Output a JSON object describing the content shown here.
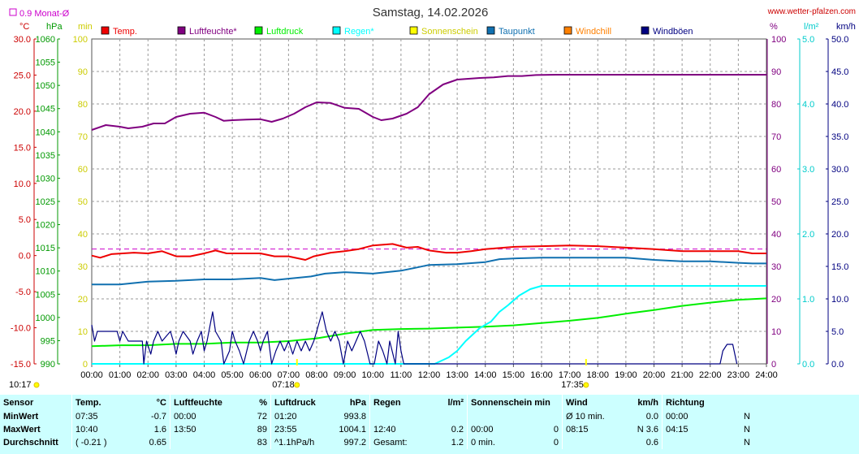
{
  "title": "Samstag, 14.02.2026",
  "site": "www.wetter-pfalzen.com",
  "month_avg_label": "0.9 Monat-Ø",
  "colors": {
    "temp": "#ee0000",
    "humidity": "#800080",
    "pressure": "#00ee00",
    "rain": "#00ffff",
    "sun": "#ffff00",
    "dewpoint": "#1070b0",
    "windchill": "#ff8000",
    "gusts": "#000080",
    "month_avg": "#cc00cc"
  },
  "legend": [
    {
      "key": "temp",
      "label": "Temp."
    },
    {
      "key": "humidity",
      "label": "Luftfeuchte*"
    },
    {
      "key": "pressure",
      "label": "Luftdruck"
    },
    {
      "key": "rain",
      "label": "Regen*"
    },
    {
      "key": "sun",
      "label": "Sonnenschein"
    },
    {
      "key": "dewpoint",
      "label": "Taupunkt"
    },
    {
      "key": "windchill",
      "label": "Windchill"
    },
    {
      "key": "gusts",
      "label": "Windböen"
    }
  ],
  "sunrise": "07:18",
  "sunset": "17:35",
  "current_time": "10:17",
  "chart_data": {
    "type": "line",
    "x_ticks": [
      "00:00",
      "01:00",
      "02:00",
      "03:00",
      "04:00",
      "05:00",
      "06:00",
      "07:00",
      "08:00",
      "09:00",
      "10:00",
      "11:00",
      "12:00",
      "13:00",
      "14:00",
      "15:00",
      "16:00",
      "17:00",
      "18:00",
      "19:00",
      "20:00",
      "21:00",
      "22:00",
      "23:00",
      "24:00"
    ],
    "axes": {
      "temp": {
        "unit": "°C",
        "ticks": [
          "30.0",
          "25.0",
          "20.0",
          "15.0",
          "10.0",
          "5.0",
          "0.0",
          "-5.0",
          "-10.0",
          "-15.0"
        ],
        "range": [
          -15,
          30
        ]
      },
      "pressure": {
        "unit": "hPa",
        "ticks": [
          "1060",
          "1055",
          "1050",
          "1045",
          "1040",
          "1035",
          "1030",
          "1025",
          "1020",
          "1015",
          "1010",
          "1005",
          "1000",
          "995",
          "990"
        ],
        "range": [
          990,
          1060
        ]
      },
      "minutes": {
        "unit": "min",
        "ticks": [
          "100",
          "90",
          "80",
          "70",
          "60",
          "50",
          "40",
          "30",
          "20",
          "10",
          "0"
        ],
        "range": [
          0,
          100
        ]
      },
      "percent": {
        "unit": "%",
        "ticks": [
          "100",
          "90",
          "80",
          "70",
          "60",
          "50",
          "40",
          "30",
          "20",
          "10",
          "0"
        ],
        "range": [
          0,
          100
        ]
      },
      "rain": {
        "unit": "l/m²",
        "ticks": [
          "5.0",
          "4.0",
          "3.0",
          "2.0",
          "1.0",
          "0.0"
        ],
        "range": [
          0,
          5
        ]
      },
      "wind": {
        "unit": "km/h",
        "ticks": [
          "50.0",
          "45.0",
          "40.0",
          "35.0",
          "30.0",
          "25.0",
          "20.0",
          "15.0",
          "10.0",
          "5.0",
          "0.0"
        ],
        "range": [
          0,
          50
        ]
      }
    },
    "month_avg_temp": 0.9,
    "series": [
      {
        "name": "Temp.",
        "axis": "temp",
        "points": [
          [
            0,
            0.0
          ],
          [
            0.3,
            -0.3
          ],
          [
            0.7,
            0.2
          ],
          [
            1.5,
            0.4
          ],
          [
            2.0,
            0.3
          ],
          [
            2.5,
            0.6
          ],
          [
            3.0,
            -0.1
          ],
          [
            3.5,
            -0.1
          ],
          [
            4.0,
            0.3
          ],
          [
            4.4,
            0.7
          ],
          [
            4.8,
            0.3
          ],
          [
            6.0,
            0.3
          ],
          [
            6.5,
            -0.1
          ],
          [
            7.0,
            -0.1
          ],
          [
            7.6,
            -0.6
          ],
          [
            7.9,
            -0.1
          ],
          [
            8.5,
            0.4
          ],
          [
            9.0,
            0.6
          ],
          [
            9.5,
            0.9
          ],
          [
            10.0,
            1.4
          ],
          [
            10.7,
            1.6
          ],
          [
            11.2,
            1.1
          ],
          [
            11.6,
            1.2
          ],
          [
            12.0,
            0.7
          ],
          [
            12.6,
            0.4
          ],
          [
            13.0,
            0.4
          ],
          [
            13.5,
            0.6
          ],
          [
            14.0,
            0.9
          ],
          [
            15.0,
            1.2
          ],
          [
            16.0,
            1.3
          ],
          [
            17.0,
            1.4
          ],
          [
            18.0,
            1.3
          ],
          [
            19.0,
            1.1
          ],
          [
            20.0,
            0.9
          ],
          [
            21.0,
            0.6
          ],
          [
            22.0,
            0.6
          ],
          [
            23.0,
            0.6
          ],
          [
            23.5,
            0.3
          ],
          [
            24,
            0.3
          ]
        ]
      },
      {
        "name": "Luftfeuchte*",
        "axis": "percent",
        "points": [
          [
            0,
            72
          ],
          [
            0.5,
            73.5
          ],
          [
            1,
            73
          ],
          [
            1.3,
            72.5
          ],
          [
            1.8,
            73
          ],
          [
            2.2,
            74
          ],
          [
            2.6,
            74
          ],
          [
            3,
            76
          ],
          [
            3.5,
            77
          ],
          [
            4.0,
            77.3
          ],
          [
            4.4,
            76
          ],
          [
            4.7,
            74.8
          ],
          [
            5,
            75
          ],
          [
            5.5,
            75.2
          ],
          [
            6,
            75.3
          ],
          [
            6.4,
            74.5
          ],
          [
            6.8,
            75.5
          ],
          [
            7.2,
            77
          ],
          [
            7.6,
            79
          ],
          [
            8.0,
            80.5
          ],
          [
            8.5,
            80.3
          ],
          [
            9.0,
            78.8
          ],
          [
            9.5,
            78.5
          ],
          [
            10.0,
            76
          ],
          [
            10.3,
            75
          ],
          [
            10.7,
            75.5
          ],
          [
            11.2,
            77
          ],
          [
            11.6,
            79
          ],
          [
            12.0,
            83
          ],
          [
            12.5,
            86
          ],
          [
            13.0,
            87.5
          ],
          [
            13.8,
            88
          ],
          [
            14.3,
            88.2
          ],
          [
            14.8,
            88.6
          ],
          [
            15.3,
            88.6
          ],
          [
            15.8,
            88.9
          ],
          [
            16.5,
            89
          ],
          [
            24,
            89
          ]
        ]
      },
      {
        "name": "Luftdruck",
        "axis": "pressure",
        "points": [
          [
            0,
            993.8
          ],
          [
            1,
            994.0
          ],
          [
            2,
            994.0
          ],
          [
            3,
            994.3
          ],
          [
            4,
            994.3
          ],
          [
            5,
            994.6
          ],
          [
            6,
            994.6
          ],
          [
            7,
            994.9
          ],
          [
            8,
            995.5
          ],
          [
            9,
            996.5
          ],
          [
            10,
            997.3
          ],
          [
            11,
            997.5
          ],
          [
            12,
            997.6
          ],
          [
            13,
            997.8
          ],
          [
            14,
            998.0
          ],
          [
            15,
            998.3
          ],
          [
            16,
            998.8
          ],
          [
            17,
            999.3
          ],
          [
            18,
            999.9
          ],
          [
            19,
            1000.8
          ],
          [
            20,
            1001.6
          ],
          [
            21,
            1002.5
          ],
          [
            22,
            1003.2
          ],
          [
            23,
            1003.8
          ],
          [
            24,
            1004.1
          ]
        ]
      },
      {
        "name": "Regen*",
        "axis": "rain",
        "points": [
          [
            0,
            0
          ],
          [
            12.2,
            0
          ],
          [
            12.7,
            0.1
          ],
          [
            13.0,
            0.2
          ],
          [
            13.3,
            0.35
          ],
          [
            13.8,
            0.55
          ],
          [
            14.2,
            0.65
          ],
          [
            14.5,
            0.8
          ],
          [
            14.8,
            0.9
          ],
          [
            15.2,
            1.05
          ],
          [
            15.6,
            1.15
          ],
          [
            16.0,
            1.2
          ],
          [
            24,
            1.2
          ]
        ]
      },
      {
        "name": "Taupunkt",
        "axis": "temp",
        "points": [
          [
            0,
            -4.0
          ],
          [
            1,
            -4.0
          ],
          [
            2,
            -3.6
          ],
          [
            3,
            -3.5
          ],
          [
            4,
            -3.3
          ],
          [
            5,
            -3.3
          ],
          [
            6,
            -3.1
          ],
          [
            6.5,
            -3.4
          ],
          [
            7,
            -3.2
          ],
          [
            7.8,
            -2.9
          ],
          [
            8.3,
            -2.5
          ],
          [
            9,
            -2.3
          ],
          [
            10,
            -2.5
          ],
          [
            11,
            -2.1
          ],
          [
            11.5,
            -1.7
          ],
          [
            12,
            -1.3
          ],
          [
            13,
            -1.2
          ],
          [
            14,
            -0.9
          ],
          [
            14.5,
            -0.5
          ],
          [
            15,
            -0.4
          ],
          [
            16,
            -0.3
          ],
          [
            17,
            -0.3
          ],
          [
            18,
            -0.3
          ],
          [
            19,
            -0.3
          ],
          [
            20,
            -0.6
          ],
          [
            21,
            -0.8
          ],
          [
            22,
            -0.8
          ],
          [
            23,
            -1.0
          ],
          [
            23.5,
            -1.1
          ],
          [
            24,
            -1.1
          ]
        ]
      },
      {
        "name": "Windböen",
        "axis": "wind",
        "points": [
          [
            0,
            6
          ],
          [
            0.1,
            3.5
          ],
          [
            0.2,
            5
          ],
          [
            0.35,
            5
          ],
          [
            0.6,
            5
          ],
          [
            0.8,
            5
          ],
          [
            0.9,
            5
          ],
          [
            1.0,
            3.5
          ],
          [
            1.1,
            5
          ],
          [
            1.3,
            3.5
          ],
          [
            1.6,
            3.5
          ],
          [
            1.8,
            3.5
          ],
          [
            1.85,
            0
          ],
          [
            1.95,
            3.5
          ],
          [
            2.1,
            1.5
          ],
          [
            2.2,
            3.5
          ],
          [
            2.35,
            5
          ],
          [
            2.5,
            3.5
          ],
          [
            2.8,
            5
          ],
          [
            2.9,
            3.5
          ],
          [
            3.0,
            1.5
          ],
          [
            3.1,
            3.5
          ],
          [
            3.25,
            5
          ],
          [
            3.5,
            3.5
          ],
          [
            3.6,
            1.5
          ],
          [
            3.75,
            3.5
          ],
          [
            3.9,
            5
          ],
          [
            4.0,
            2
          ],
          [
            4.1,
            3.5
          ],
          [
            4.3,
            8
          ],
          [
            4.4,
            5
          ],
          [
            4.6,
            3.5
          ],
          [
            4.7,
            0
          ],
          [
            4.9,
            2
          ],
          [
            5.0,
            5
          ],
          [
            5.1,
            3.5
          ],
          [
            5.25,
            2
          ],
          [
            5.4,
            0
          ],
          [
            5.6,
            3.5
          ],
          [
            5.75,
            5
          ],
          [
            5.9,
            3.5
          ],
          [
            6.0,
            2
          ],
          [
            6.1,
            3.5
          ],
          [
            6.25,
            5
          ],
          [
            6.4,
            0
          ],
          [
            6.55,
            2
          ],
          [
            6.7,
            3.5
          ],
          [
            6.85,
            2
          ],
          [
            7.0,
            3.5
          ],
          [
            7.15,
            1.5
          ],
          [
            7.3,
            3.5
          ],
          [
            7.45,
            2
          ],
          [
            7.6,
            3.5
          ],
          [
            7.75,
            2
          ],
          [
            7.9,
            3.5
          ],
          [
            8.0,
            5
          ],
          [
            8.2,
            8
          ],
          [
            8.35,
            5
          ],
          [
            8.5,
            3.5
          ],
          [
            8.65,
            5
          ],
          [
            8.8,
            3.5
          ],
          [
            8.95,
            0
          ],
          [
            9.1,
            3.5
          ],
          [
            9.25,
            2
          ],
          [
            9.4,
            3.5
          ],
          [
            9.55,
            5
          ],
          [
            9.7,
            3.5
          ],
          [
            9.9,
            0
          ],
          [
            10.05,
            0
          ],
          [
            10.2,
            3.5
          ],
          [
            10.35,
            2
          ],
          [
            10.5,
            0
          ],
          [
            10.6,
            3.5
          ],
          [
            10.8,
            0
          ],
          [
            10.9,
            5
          ],
          [
            11.0,
            2
          ],
          [
            11.1,
            0
          ],
          [
            22.35,
            0
          ],
          [
            22.45,
            2
          ],
          [
            22.6,
            3
          ],
          [
            22.8,
            3
          ],
          [
            22.95,
            0
          ]
        ]
      }
    ]
  },
  "stats": {
    "headers": {
      "sensor": "Sensor",
      "temp": "Temp.",
      "temp_unit": "°C",
      "humidity": "Luftfeuchte",
      "humidity_unit": "%",
      "pressure": "Luftdruck",
      "pressure_unit": "hPa",
      "rain": "Regen",
      "rain_unit": "l/m²",
      "sun": "Sonnenschein min",
      "wind": "Wind",
      "wind_unit": "km/h",
      "direction": "Richtung"
    },
    "rows": [
      {
        "label": "MinWert",
        "temp_t": "07:35",
        "temp_v": "-0.7",
        "hum_t": "00:00",
        "hum_v": "72",
        "pres_t": "01:20",
        "pres_v": "993.8",
        "rain_t": "",
        "rain_v": "",
        "sun_t": "",
        "sun_v": "",
        "wind_t": "Ø 10 min.",
        "wind_v": "0.0",
        "dir_t": "00:00",
        "dir_v": "N"
      },
      {
        "label": "MaxWert",
        "temp_t": "10:40",
        "temp_v": "1.6",
        "hum_t": "13:50",
        "hum_v": "89",
        "pres_t": "23:55",
        "pres_v": "1004.1",
        "rain_t": "12:40",
        "rain_v": "0.2",
        "sun_t": "00:00",
        "sun_v": "0",
        "wind_t": "08:15",
        "wind_v": "N 3.6",
        "dir_t": "04:15",
        "dir_v": "N"
      },
      {
        "label": "Durchschnitt",
        "temp_t": "( -0.21 )",
        "temp_v": "0.65",
        "hum_t": "",
        "hum_v": "83",
        "pres_t": "^1.1hPa/h",
        "pres_v": "997.2",
        "rain_t": "Gesamt:",
        "rain_v": "1.2",
        "sun_t": "0 min.",
        "sun_v": "0",
        "wind_t": "",
        "wind_v": "0.6",
        "dir_t": "",
        "dir_v": "N"
      }
    ]
  }
}
